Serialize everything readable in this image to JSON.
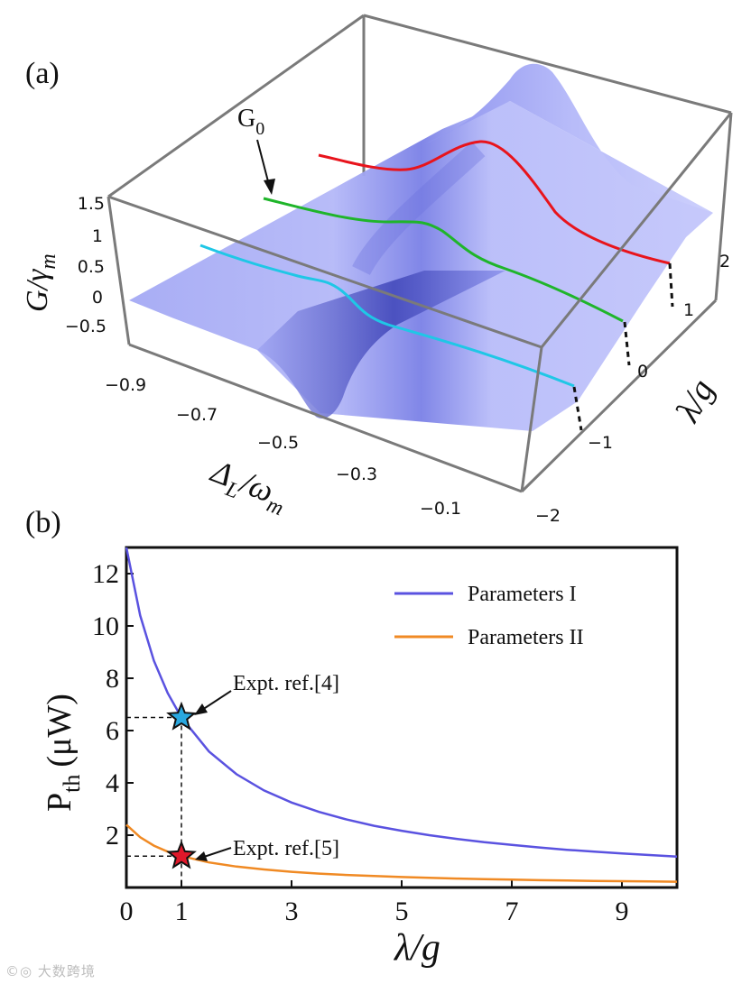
{
  "panels": {
    "a_label": "(a)",
    "b_label": "(b)"
  },
  "panel_a": {
    "marker_label": "G",
    "marker_sub": "0",
    "zlabel_main": "G/γ",
    "zlabel_sub": "m",
    "xlabel_main": "Δ",
    "xlabel_sub": "L",
    "xlabel_rest": "/ω",
    "xlabel_sub2": "m",
    "ylabel": "λ/g"
  },
  "panel_b": {
    "ylabel_main": "P",
    "ylabel_sub": "th",
    "ylabel_unit": "(μW)",
    "xlabel": "λ/g"
  },
  "colors": {
    "surface": "#aeb3f8",
    "surface_dark": "#6f75e0",
    "curve_red": "#e8141c",
    "curve_green": "#1fb52a",
    "curve_cyan": "#1fc7e6",
    "series1": "#5a52e0",
    "series2": "#f08a24",
    "star1": "#2aa8e0",
    "star2": "#e0182a"
  },
  "chart_data": [
    {
      "type": "surface",
      "title": "(a)",
      "xlabel": "Δ_L/ω_m",
      "ylabel": "λ/g",
      "zlabel": "G/γ_m",
      "x_ticks": [
        "−0.9",
        "−0.7",
        "−0.5",
        "−0.3",
        "−0.1"
      ],
      "y_ticks": [
        "−2",
        "−1",
        "0",
        "1",
        "2"
      ],
      "z_ticks": [
        "1.5",
        "1",
        "0.5",
        "0",
        "−0.5"
      ],
      "xlim": [
        -1.0,
        0.0
      ],
      "ylim": [
        -2,
        2
      ],
      "zlim": [
        -0.5,
        1.5
      ],
      "annotation": "G0",
      "slices": [
        {
          "lambda_over_g": 1,
          "color": "red"
        },
        {
          "lambda_over_g": 0,
          "color": "green"
        },
        {
          "lambda_over_g": -1,
          "color": "cyan"
        }
      ]
    },
    {
      "type": "line",
      "title": "(b)",
      "xlabel": "λ/g",
      "ylabel": "P_th (μW)",
      "xlim": [
        0,
        10
      ],
      "ylim": [
        0,
        13
      ],
      "x_ticks": [
        0,
        1,
        3,
        5,
        7,
        9
      ],
      "y_ticks": [
        2,
        4,
        6,
        8,
        10,
        12
      ],
      "x": [
        0,
        0.25,
        0.5,
        0.75,
        1,
        1.5,
        2,
        2.5,
        3,
        3.5,
        4,
        4.5,
        5,
        5.5,
        6,
        6.5,
        7,
        7.5,
        8,
        8.5,
        9,
        9.5,
        10
      ],
      "series": [
        {
          "name": "Parameters I",
          "values": [
            13.0,
            10.4,
            8.67,
            7.43,
            6.5,
            5.2,
            4.33,
            3.71,
            3.25,
            2.89,
            2.6,
            2.36,
            2.17,
            2.0,
            1.86,
            1.73,
            1.63,
            1.53,
            1.44,
            1.37,
            1.3,
            1.24,
            1.18
          ]
        },
        {
          "name": "Parameters II",
          "values": [
            2.4,
            1.92,
            1.6,
            1.37,
            1.2,
            0.96,
            0.8,
            0.69,
            0.6,
            0.53,
            0.48,
            0.44,
            0.4,
            0.37,
            0.34,
            0.32,
            0.3,
            0.28,
            0.27,
            0.25,
            0.24,
            0.23,
            0.22
          ]
        }
      ],
      "legend_position": "top-right",
      "annotations": [
        {
          "text": "Expt. ref.[4]",
          "x": 1,
          "y": 6.5,
          "marker": "star"
        },
        {
          "text": "Expt. ref.[5]",
          "x": 1,
          "y": 1.2,
          "marker": "star"
        }
      ]
    }
  ],
  "watermark": "©◎ 大数跨境"
}
